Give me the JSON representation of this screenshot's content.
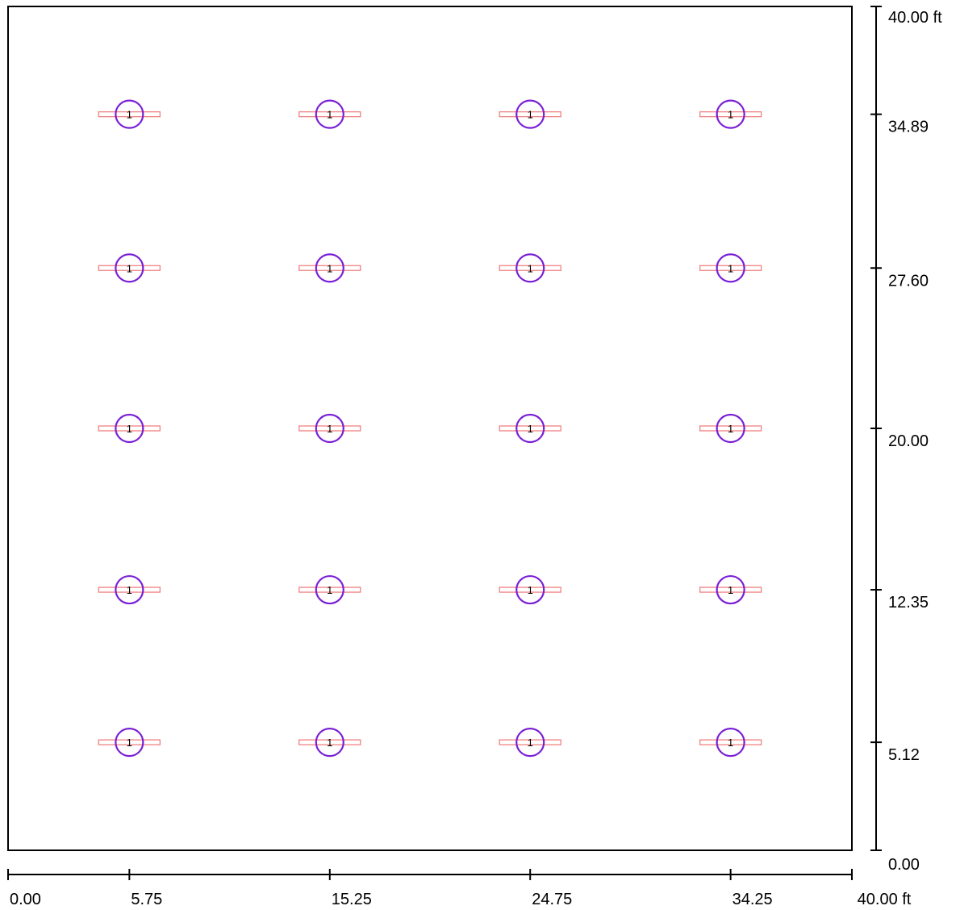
{
  "plan": {
    "extent_x": [
      0,
      40
    ],
    "extent_y": [
      0,
      40
    ],
    "unit": "ft",
    "x_ticks": [
      {
        "value": 0,
        "label": "0.00"
      },
      {
        "value": 5.75,
        "label": "5.75"
      },
      {
        "value": 15.25,
        "label": "15.25"
      },
      {
        "value": 24.75,
        "label": "24.75"
      },
      {
        "value": 34.25,
        "label": "34.25"
      },
      {
        "value": 40,
        "label": "40.00 ft"
      }
    ],
    "y_ticks": [
      {
        "value": 0,
        "label": "0.00"
      },
      {
        "value": 5.12,
        "label": "5.12"
      },
      {
        "value": 12.35,
        "label": "12.35"
      },
      {
        "value": 20.0,
        "label": "20.00"
      },
      {
        "value": 27.6,
        "label": "27.60"
      },
      {
        "value": 34.89,
        "label": "34.89"
      },
      {
        "value": 40,
        "label": "40.00 ft"
      }
    ],
    "luminaire_label": "1",
    "luminaire_x": [
      5.75,
      15.25,
      24.75,
      34.25
    ],
    "luminaire_y": [
      34.89,
      27.6,
      20.0,
      12.35,
      5.12
    ],
    "colors": {
      "border": "#000000",
      "fixture_body": "#f08080",
      "fixture_circle": "#7b1fd6"
    }
  }
}
